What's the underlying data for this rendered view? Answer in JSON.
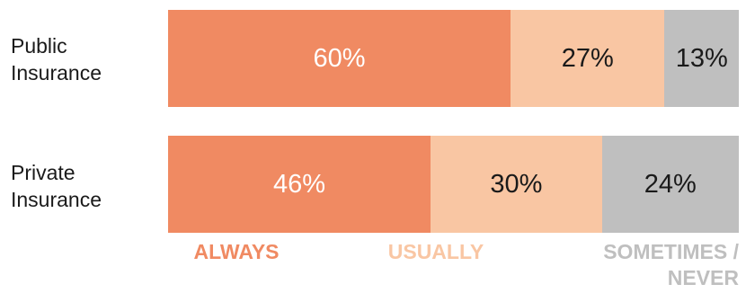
{
  "chart_data": {
    "type": "bar",
    "orientation": "horizontal",
    "stacked": true,
    "categories": [
      "Public\nInsurance",
      "Private\nInsurance"
    ],
    "series": [
      {
        "name": "ALWAYS",
        "values": [
          60,
          46
        ],
        "labels": [
          "60%",
          "46%"
        ],
        "color": "#f08a62"
      },
      {
        "name": "USUALLY",
        "values": [
          27,
          30
        ],
        "labels": [
          "27%",
          "30%"
        ],
        "color": "#f9c6a3"
      },
      {
        "name": "SOMETIMES /\nNEVER",
        "values": [
          13,
          24
        ],
        "labels": [
          "13%",
          "24%"
        ],
        "color": "#bfbfbf"
      }
    ],
    "xlim": [
      0,
      100
    ],
    "grid": false,
    "legend": "bottom"
  },
  "colors": {
    "always_text": "#ffffff",
    "other_text": "#1a1a1a"
  }
}
